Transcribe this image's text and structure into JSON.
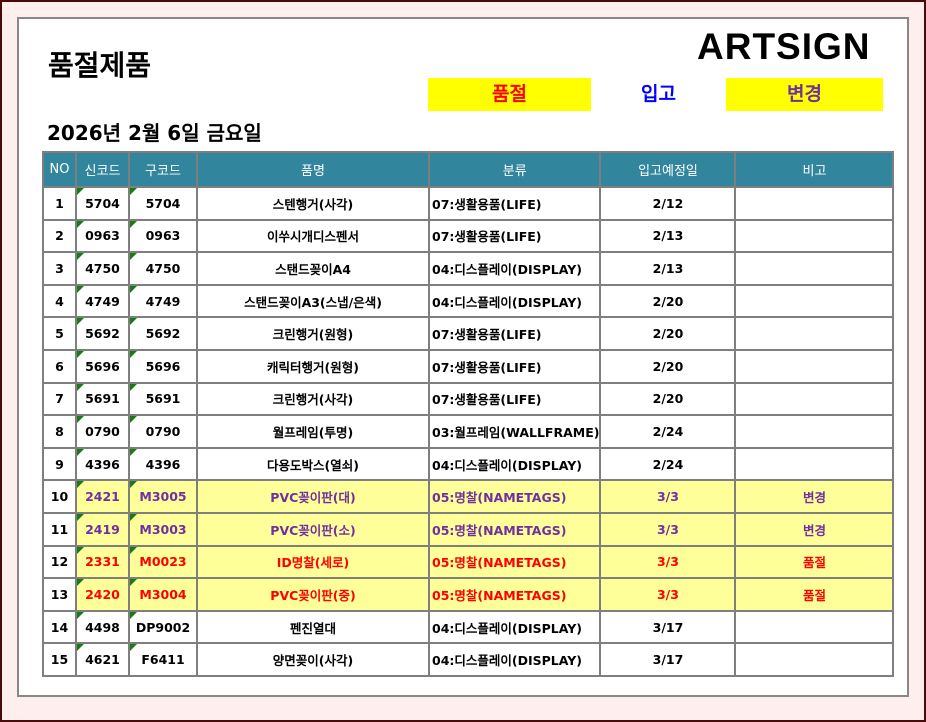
{
  "title": "품절제품",
  "logo": "ARTSIGN",
  "legend": {
    "out_of_stock": "품절",
    "incoming": "입고",
    "changed": "변경"
  },
  "date": "2026년 2월 6일 금요일",
  "colors": {
    "header_bg": "#31859c",
    "highlight_row": "#ffff99",
    "legend_bg": "#ffff00",
    "changed": "#7030a0",
    "out_of_stock": "#ff0000",
    "incoming": "#0000ff"
  },
  "table": {
    "headers": [
      "NO",
      "신코드",
      "구코드",
      "품명",
      "분류",
      "입고예정일",
      "비고"
    ],
    "rows": [
      {
        "no": "1",
        "new": "5704",
        "old": "5704",
        "name": "스텐행거(사각)",
        "cat": "07:생활용품(LIFE)",
        "date": "2/12",
        "note": "",
        "status": ""
      },
      {
        "no": "2",
        "new": "0963",
        "old": "0963",
        "name": "이쑤시개디스펜서",
        "cat": "07:생활용품(LIFE)",
        "date": "2/13",
        "note": "",
        "status": ""
      },
      {
        "no": "3",
        "new": "4750",
        "old": "4750",
        "name": "스탠드꽂이A4",
        "cat": "04:디스플레이(DISPLAY)",
        "date": "2/13",
        "note": "",
        "status": ""
      },
      {
        "no": "4",
        "new": "4749",
        "old": "4749",
        "name": "스탠드꽂이A3(스냅/은색)",
        "cat": "04:디스플레이(DISPLAY)",
        "date": "2/20",
        "note": "",
        "status": ""
      },
      {
        "no": "5",
        "new": "5692",
        "old": "5692",
        "name": "크린행거(원형)",
        "cat": "07:생활용품(LIFE)",
        "date": "2/20",
        "note": "",
        "status": ""
      },
      {
        "no": "6",
        "new": "5696",
        "old": "5696",
        "name": "캐릭터행거(원형)",
        "cat": "07:생활용품(LIFE)",
        "date": "2/20",
        "note": "",
        "status": ""
      },
      {
        "no": "7",
        "new": "5691",
        "old": "5691",
        "name": "크린행거(사각)",
        "cat": "07:생활용품(LIFE)",
        "date": "2/20",
        "note": "",
        "status": ""
      },
      {
        "no": "8",
        "new": "0790",
        "old": "0790",
        "name": "월프레임(투명)",
        "cat": "03:월프레임(WALLFRAME)",
        "date": "2/24",
        "note": "",
        "status": ""
      },
      {
        "no": "9",
        "new": "4396",
        "old": "4396",
        "name": "다용도박스(열쇠)",
        "cat": "04:디스플레이(DISPLAY)",
        "date": "2/24",
        "note": "",
        "status": ""
      },
      {
        "no": "10",
        "new": "2421",
        "old": "M3005",
        "name": "PVC꽂이판(대)",
        "cat": "05:명찰(NAMETAGS)",
        "date": "3/3",
        "note": "변경",
        "status": "purple"
      },
      {
        "no": "11",
        "new": "2419",
        "old": "M3003",
        "name": "PVC꽂이판(소)",
        "cat": "05:명찰(NAMETAGS)",
        "date": "3/3",
        "note": "변경",
        "status": "purple"
      },
      {
        "no": "12",
        "new": "2331",
        "old": "M0023",
        "name": "ID명찰(세로)",
        "cat": "05:명찰(NAMETAGS)",
        "date": "3/3",
        "note": "품절",
        "status": "red"
      },
      {
        "no": "13",
        "new": "2420",
        "old": "M3004",
        "name": "PVC꽂이판(중)",
        "cat": "05:명찰(NAMETAGS)",
        "date": "3/3",
        "note": "품절",
        "status": "red"
      },
      {
        "no": "14",
        "new": "4498",
        "old": "DP9002",
        "name": "펜진열대",
        "cat": "04:디스플레이(DISPLAY)",
        "date": "3/17",
        "note": "",
        "status": ""
      },
      {
        "no": "15",
        "new": "4621",
        "old": "F6411",
        "name": "양면꽂이(사각)",
        "cat": "04:디스플레이(DISPLAY)",
        "date": "3/17",
        "note": "",
        "status": ""
      }
    ]
  }
}
